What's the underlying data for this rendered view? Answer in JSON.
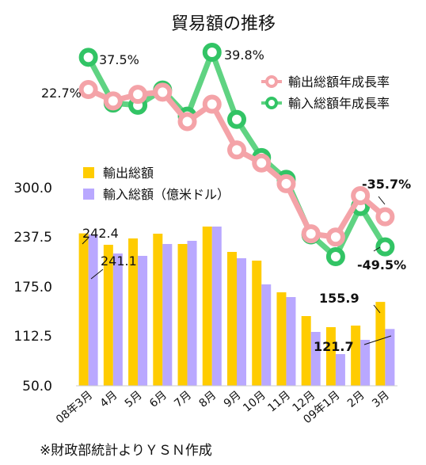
{
  "chart_data": {
    "type": "bar+line",
    "title": "貿易額の推移",
    "categories": [
      "08年3月",
      "4月",
      "5月",
      "6月",
      "7月",
      "8月",
      "9月",
      "10月",
      "11月",
      "12月",
      "09年1月",
      "2月",
      "3月"
    ],
    "bar_axis": {
      "ticks": [
        "300.0",
        "237.5",
        "175.0",
        "112.5",
        "50.0"
      ],
      "tick_values": [
        300,
        237.5,
        175,
        112.5,
        50
      ],
      "ylim": [
        50,
        300
      ]
    },
    "bar_series": [
      {
        "name": "輸出総額",
        "color": "#FFCC00",
        "values": [
          242.4,
          228,
          236,
          242,
          229,
          251,
          219,
          208,
          168,
          138,
          124,
          126,
          155.9
        ]
      },
      {
        "name": "輸入総額（億米ドル）",
        "color": "#B9A8FF",
        "values": [
          241.1,
          217,
          214,
          229,
          233,
          251,
          211,
          178,
          162,
          118,
          90,
          108,
          121.7
        ]
      }
    ],
    "line_series": [
      {
        "name": "輸出総額年成長率",
        "color": "#F4A3A8",
        "values": [
          22.7,
          17.5,
          20.5,
          21.5,
          8.0,
          16.0,
          -5.0,
          -11.0,
          -20.5,
          -43.5,
          -45.0,
          -26.0,
          -35.7
        ]
      },
      {
        "name": "輸入総額年成長率",
        "color": "#5FD382",
        "values": [
          37.5,
          16.5,
          15.5,
          22.5,
          10.5,
          39.8,
          9.0,
          -8.5,
          -18.5,
          -44.0,
          -54.0,
          -31.0,
          -49.5
        ]
      }
    ],
    "annotations": {
      "bar_first_export": "242.4",
      "bar_first_import": "241.1",
      "bar_last_export": "155.9",
      "bar_last_import": "121.7",
      "line_first_export": "22.7%",
      "line_first_import": "37.5%",
      "line_peak_import": "39.8%",
      "line_last_export": "-35.7%",
      "line_last_import": "-49.5%"
    },
    "legend_placement": "lines top-right, bars upper-left",
    "grid": false
  },
  "footnote": "※財政部統計よりＹＳＮ作成"
}
